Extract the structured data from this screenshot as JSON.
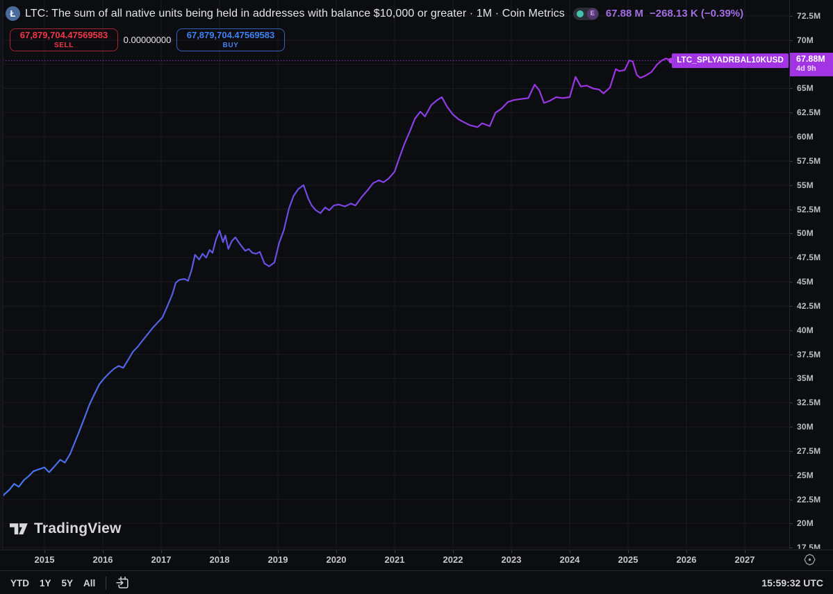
{
  "header": {
    "coin_glyph": "Ł",
    "title": "LTC: The sum of all native units being held in addresses with balance $10,000 or greater · 1M · Coin Metrics",
    "eye_badge_letter": "E",
    "value": "67.88 M",
    "change": "−268.13 K (−0.39%)"
  },
  "trade_panel": {
    "sell_value": "67,879,704.47569583",
    "sell_label": "SELL",
    "quantity": "0.00000000",
    "buy_value": "67,879,704.47569583",
    "buy_label": "BUY"
  },
  "price_marker": {
    "series_badge": "LTC_SPLYADRBAL10KUSD",
    "axis_value": "67.88M",
    "countdown": "4d 9h",
    "level": 67.88
  },
  "y_axis": {
    "labels": [
      {
        "text": "72.5M",
        "value": 72.5
      },
      {
        "text": "70M",
        "value": 70
      },
      {
        "text": "65M",
        "value": 65
      },
      {
        "text": "62.5M",
        "value": 62.5
      },
      {
        "text": "60M",
        "value": 60
      },
      {
        "text": "57.5M",
        "value": 57.5
      },
      {
        "text": "55M",
        "value": 55
      },
      {
        "text": "52.5M",
        "value": 52.5
      },
      {
        "text": "50M",
        "value": 50
      },
      {
        "text": "47.5M",
        "value": 47.5
      },
      {
        "text": "45M",
        "value": 45
      },
      {
        "text": "42.5M",
        "value": 42.5
      },
      {
        "text": "40M",
        "value": 40
      },
      {
        "text": "37.5M",
        "value": 37.5
      },
      {
        "text": "35M",
        "value": 35
      },
      {
        "text": "32.5M",
        "value": 32.5
      },
      {
        "text": "30M",
        "value": 30
      },
      {
        "text": "27.5M",
        "value": 27.5
      },
      {
        "text": "25M",
        "value": 25
      },
      {
        "text": "22.5M",
        "value": 22.5
      },
      {
        "text": "20M",
        "value": 20
      },
      {
        "text": "17.5M",
        "value": 17.5
      }
    ],
    "grid_values": [
      72.5,
      70,
      67.5,
      65,
      62.5,
      60,
      57.5,
      55,
      52.5,
      50,
      47.5,
      45,
      42.5,
      40,
      37.5,
      35,
      32.5,
      30,
      27.5,
      25,
      22.5,
      20,
      17.5
    ]
  },
  "x_axis": {
    "labels": [
      {
        "text": "2015",
        "value": 2015
      },
      {
        "text": "2016",
        "value": 2016
      },
      {
        "text": "2017",
        "value": 2017
      },
      {
        "text": "2018",
        "value": 2018
      },
      {
        "text": "2019",
        "value": 2019
      },
      {
        "text": "2020",
        "value": 2020
      },
      {
        "text": "2021",
        "value": 2021
      },
      {
        "text": "2022",
        "value": 2022
      },
      {
        "text": "2023",
        "value": 2023
      },
      {
        "text": "2024",
        "value": 2024
      },
      {
        "text": "2025",
        "value": 2025
      },
      {
        "text": "2026",
        "value": 2026
      },
      {
        "text": "2027",
        "value": 2027
      }
    ]
  },
  "toolbar": {
    "ranges": [
      "YTD",
      "1Y",
      "5Y",
      "All"
    ],
    "clock": "15:59:32 UTC"
  },
  "watermark": {
    "text": "TradingView"
  },
  "colors": {
    "accent_purple": "#A234E4",
    "value_text": "#a16ee4",
    "sell_red": "#F23645",
    "buy_blue": "#3F82F5",
    "teal_dot": "#45C4AD",
    "line_start": "#4479EF",
    "line_mid": "#7B42E6",
    "line_end": "#AC2FE4",
    "grid": "#191a20"
  },
  "chart_data": {
    "type": "line",
    "title": "LTC: The sum of all native units being held in addresses with balance $10,000 or greater · 1M · Coin Metrics",
    "series_name": "LTC_SPLYADRBAL10KUSD",
    "unit": "millions of native units",
    "interval": "1M",
    "source": "Coin Metrics",
    "last_value": 67.88,
    "last_change": "−268.13 K (−0.39%)",
    "x_unit": "decimal year",
    "x_range": [
      2014.23,
      2027.75
    ],
    "y_range_visible": [
      17.4,
      74.1
    ],
    "grid": true,
    "x": [
      2014.23,
      2014.31,
      2014.4,
      2014.48,
      2014.56,
      2014.65,
      2014.73,
      2014.81,
      2014.9,
      2015.0,
      2015.08,
      2015.17,
      2015.27,
      2015.35,
      2015.44,
      2015.52,
      2015.6,
      2015.69,
      2015.77,
      2015.85,
      2015.94,
      2016.02,
      2016.1,
      2016.19,
      2016.27,
      2016.35,
      2016.44,
      2016.52,
      2016.6,
      2016.69,
      2016.77,
      2016.85,
      2016.94,
      2017.02,
      2017.1,
      2017.19,
      2017.25,
      2017.31,
      2017.4,
      2017.46,
      2017.52,
      2017.58,
      2017.65,
      2017.71,
      2017.77,
      2017.83,
      2017.88,
      2017.94,
      2018.0,
      2018.06,
      2018.1,
      2018.15,
      2018.21,
      2018.27,
      2018.35,
      2018.44,
      2018.5,
      2018.56,
      2018.63,
      2018.69,
      2018.77,
      2018.85,
      2018.94,
      2019.02,
      2019.1,
      2019.19,
      2019.27,
      2019.35,
      2019.44,
      2019.52,
      2019.58,
      2019.65,
      2019.73,
      2019.81,
      2019.88,
      2019.96,
      2020.04,
      2020.15,
      2020.25,
      2020.33,
      2020.44,
      2020.54,
      2020.63,
      2020.73,
      2020.81,
      2020.9,
      2021.0,
      2021.08,
      2021.17,
      2021.27,
      2021.35,
      2021.44,
      2021.52,
      2021.63,
      2021.73,
      2021.81,
      2021.9,
      2022.0,
      2022.1,
      2022.19,
      2022.29,
      2022.42,
      2022.5,
      2022.63,
      2022.73,
      2022.83,
      2022.94,
      2023.04,
      2023.15,
      2023.29,
      2023.4,
      2023.48,
      2023.56,
      2023.65,
      2023.77,
      2023.88,
      2024.0,
      2024.1,
      2024.19,
      2024.29,
      2024.4,
      2024.5,
      2024.58,
      2024.69,
      2024.79,
      2024.85,
      2024.94,
      2025.02,
      2025.08,
      2025.15,
      2025.21,
      2025.29,
      2025.4,
      2025.5,
      2025.58,
      2025.65,
      2025.7,
      2025.74
    ],
    "y": [
      22.4,
      23.0,
      23.5,
      24.1,
      23.8,
      24.5,
      24.9,
      25.4,
      25.6,
      25.8,
      25.3,
      25.9,
      26.6,
      26.3,
      27.2,
      28.4,
      29.6,
      31.0,
      32.3,
      33.3,
      34.4,
      35.0,
      35.5,
      36.0,
      36.3,
      36.1,
      37.0,
      37.8,
      38.3,
      39.0,
      39.6,
      40.2,
      40.8,
      41.3,
      42.4,
      43.7,
      44.9,
      45.2,
      45.3,
      45.1,
      46.2,
      47.8,
      47.3,
      47.9,
      47.5,
      48.3,
      48.0,
      49.4,
      50.3,
      49.1,
      49.8,
      48.4,
      49.2,
      49.6,
      48.9,
      48.2,
      48.4,
      48.0,
      47.9,
      48.1,
      46.9,
      46.6,
      47.0,
      49.0,
      50.3,
      52.6,
      53.9,
      54.6,
      55.0,
      53.6,
      52.9,
      52.4,
      52.1,
      52.7,
      52.4,
      52.9,
      53.0,
      52.8,
      53.1,
      52.9,
      53.8,
      54.5,
      55.2,
      55.5,
      55.3,
      55.7,
      56.4,
      57.8,
      59.3,
      60.7,
      61.9,
      62.6,
      62.1,
      63.3,
      63.8,
      64.1,
      63.1,
      62.3,
      61.8,
      61.5,
      61.2,
      61.0,
      61.4,
      61.1,
      62.5,
      62.9,
      63.6,
      63.8,
      63.9,
      64.0,
      65.4,
      64.8,
      63.5,
      63.7,
      64.1,
      64.0,
      64.1,
      66.2,
      65.2,
      65.3,
      65.0,
      64.9,
      64.5,
      65.1,
      67.0,
      66.8,
      66.9,
      67.9,
      67.8,
      66.4,
      66.1,
      66.3,
      66.7,
      67.5,
      67.9,
      68.1,
      68.0,
      67.88
    ]
  }
}
